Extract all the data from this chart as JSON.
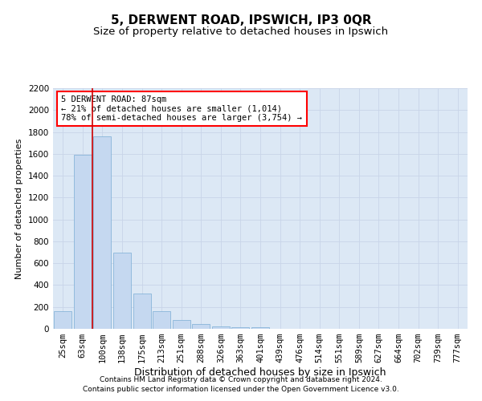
{
  "title": "5, DERWENT ROAD, IPSWICH, IP3 0QR",
  "subtitle": "Size of property relative to detached houses in Ipswich",
  "xlabel": "Distribution of detached houses by size in Ipswich",
  "ylabel": "Number of detached properties",
  "categories": [
    "25sqm",
    "63sqm",
    "100sqm",
    "138sqm",
    "175sqm",
    "213sqm",
    "251sqm",
    "288sqm",
    "326sqm",
    "363sqm",
    "401sqm",
    "439sqm",
    "476sqm",
    "514sqm",
    "551sqm",
    "589sqm",
    "627sqm",
    "664sqm",
    "702sqm",
    "739sqm",
    "777sqm"
  ],
  "values": [
    165,
    1590,
    1760,
    700,
    320,
    160,
    80,
    45,
    25,
    18,
    15,
    0,
    0,
    0,
    0,
    0,
    0,
    0,
    0,
    0,
    0
  ],
  "bar_color": "#c5d8f0",
  "bar_edge_color": "#7aadd4",
  "annotation_text_line1": "5 DERWENT ROAD: 87sqm",
  "annotation_text_line2": "← 21% of detached houses are smaller (1,014)",
  "annotation_text_line3": "78% of semi-detached houses are larger (3,754) →",
  "annotation_box_color": "white",
  "annotation_box_edge": "red",
  "red_line_color": "#cc0000",
  "ylim": [
    0,
    2200
  ],
  "yticks": [
    0,
    200,
    400,
    600,
    800,
    1000,
    1200,
    1400,
    1600,
    1800,
    2000,
    2200
  ],
  "grid_color": "#c8d4e8",
  "background_color": "#dce8f5",
  "footer_line1": "Contains HM Land Registry data © Crown copyright and database right 2024.",
  "footer_line2": "Contains public sector information licensed under the Open Government Licence v3.0.",
  "title_fontsize": 11,
  "subtitle_fontsize": 9.5,
  "xlabel_fontsize": 9,
  "ylabel_fontsize": 8,
  "tick_fontsize": 7.5,
  "footer_fontsize": 6.5,
  "annotation_fontsize": 7.5
}
